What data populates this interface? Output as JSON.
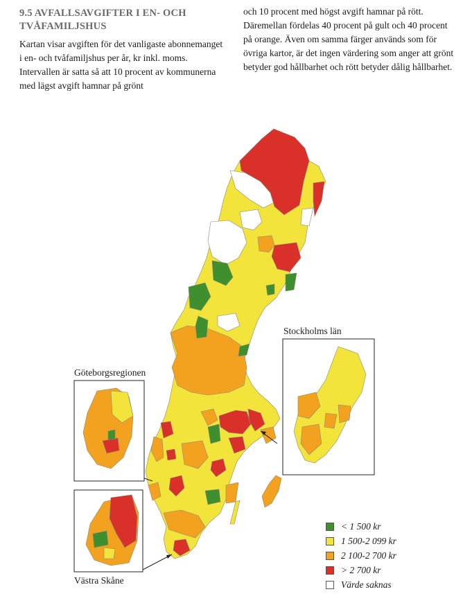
{
  "heading": "9.5 AVFALLSAVGIFTER I EN- OCH TVÅFAMILJSHUS",
  "intro_col1": "Kartan visar avgiften för det vanligaste abonnemanget i en- och tvåfamiljshus per år, kr inkl. moms. Intervallen är satta så att 10 procent av kommunerna med lägst avgift hamnar på grönt",
  "intro_col2": "och 10 procent med högst avgift hamnar på rött. Däremellan fördelas 40 procent på gult och 40 procent på orange. Även om samma färger används som för övriga kartor, är det ingen värdering som anger att grönt betyder god hållbarhet och rött betyder dålig hållbarhet.",
  "insets": {
    "stockholm": "Stockholms län",
    "goteborg": "Göteborgsregionen",
    "skane": "Västra Skåne"
  },
  "legend": [
    {
      "label": "< 1 500 kr",
      "color": "#3f8f2f",
      "icon": "green-swatch"
    },
    {
      "label": "1 500-2 099 kr",
      "color": "#f2e43a",
      "icon": "yellow-swatch"
    },
    {
      "label": "2 100-2 700 kr",
      "color": "#f2a21f",
      "icon": "orange-swatch"
    },
    {
      "label": "> 2 700 kr",
      "color": "#d9302a",
      "icon": "red-swatch"
    },
    {
      "label": "Värde saknas",
      "color": "#ffffff",
      "icon": "white-swatch"
    }
  ]
}
